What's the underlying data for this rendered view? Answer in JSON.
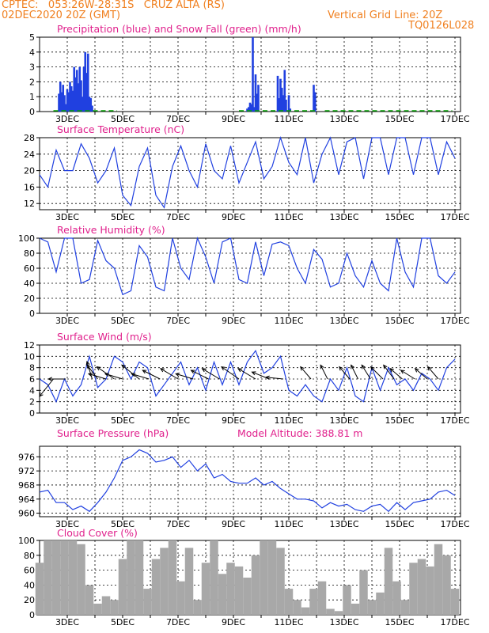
{
  "header": {
    "line1": "CPTEC:   053:26W-28:31S   CRUZ ALTA (RS)",
    "line2": "02DEC2020 20Z (GMT)",
    "grid_note": "Vertical Grid Line: 20Z",
    "code": "TQ0126L028"
  },
  "colors": {
    "header": "#f08020",
    "titles": "#e0208c",
    "line": "#2040e0",
    "precip": "#2040e0",
    "snow": "#00a000",
    "cloud": "#a8a8a8",
    "arrow": "#000000"
  },
  "x_ticks": [
    "3DEC",
    "5DEC",
    "7DEC",
    "9DEC",
    "11DEC",
    "13DEC",
    "15DEC",
    "17DEC"
  ],
  "chart_data": [
    {
      "type": "bar",
      "title": "Precipitation (blue) and Snow Fall (green) (mm/h)",
      "ylim": [
        0,
        5
      ],
      "yticks": [
        0,
        1,
        2,
        3,
        4,
        5
      ],
      "series": [
        {
          "name": "Precipitation",
          "x": [
            2.7,
            2.75,
            2.8,
            2.85,
            2.9,
            2.95,
            3.0,
            3.05,
            3.1,
            3.15,
            3.2,
            3.25,
            3.3,
            3.35,
            3.4,
            3.45,
            3.5,
            3.55,
            3.6,
            3.65,
            3.7,
            3.75,
            3.8,
            3.85,
            3.9,
            9.5,
            9.55,
            9.6,
            9.65,
            9.7,
            9.75,
            9.8,
            9.85,
            9.9,
            10.6,
            10.65,
            10.7,
            10.75,
            10.8,
            10.85,
            10.9,
            11.0,
            11.05,
            11.9,
            11.95
          ],
          "values": [
            1.2,
            2.0,
            1.3,
            1.8,
            1.1,
            0.5,
            1.5,
            1.3,
            2.0,
            1.7,
            1.4,
            3.0,
            2.3,
            2.8,
            1.9,
            3.0,
            2.1,
            1.0,
            3.0,
            4.0,
            2.6,
            3.9,
            1.0,
            0.9,
            0.4,
            0.2,
            0.3,
            0.6,
            0.5,
            5.0,
            0.3,
            2.5,
            1.2,
            1.8,
            2.4,
            0.9,
            2.2,
            1.6,
            1.1,
            2.8,
            0.8,
            1.1,
            0.2,
            1.8,
            1.3
          ]
        },
        {
          "name": "Snow Fall",
          "values": [
            0
          ]
        }
      ]
    },
    {
      "type": "line",
      "title": "Surface Temperature (nC)",
      "ylim": [
        10.5,
        28
      ],
      "yticks": [
        12,
        16,
        20,
        24,
        28
      ],
      "series": [
        {
          "name": "Temperature",
          "x": [
            2,
            2.3,
            2.6,
            2.9,
            3.2,
            3.5,
            3.8,
            4.1,
            4.4,
            4.7,
            5.0,
            5.3,
            5.6,
            5.9,
            6.2,
            6.5,
            6.8,
            7.1,
            7.4,
            7.7,
            8.0,
            8.3,
            8.6,
            8.9,
            9.2,
            9.5,
            9.8,
            10.1,
            10.4,
            10.7,
            11.0,
            11.3,
            11.6,
            11.9,
            12.2,
            12.5,
            12.8,
            13.1,
            13.4,
            13.7,
            14.0,
            14.3,
            14.6,
            14.9,
            15.2,
            15.5,
            15.8,
            16.1,
            16.4,
            16.7,
            17.0
          ],
          "values": [
            19,
            16,
            25,
            20,
            20,
            26.5,
            23,
            17,
            20,
            25.5,
            14,
            11.5,
            21,
            25.5,
            14,
            11,
            21,
            26,
            20,
            16,
            26.5,
            20,
            18,
            26,
            17,
            22,
            27,
            18,
            21,
            28,
            22,
            19,
            28,
            17,
            24,
            28,
            19,
            27,
            28,
            18,
            28,
            28,
            19,
            28,
            28,
            19,
            28,
            28,
            19,
            27,
            23
          ]
        }
      ]
    },
    {
      "type": "line",
      "title": "Relative Humidity (%)",
      "ylim": [
        0,
        100
      ],
      "yticks": [
        0,
        20,
        40,
        60,
        80,
        100
      ],
      "series": [
        {
          "name": "Relative Humidity",
          "x": [
            2,
            2.3,
            2.6,
            2.9,
            3.2,
            3.5,
            3.8,
            4.1,
            4.4,
            4.7,
            5.0,
            5.3,
            5.6,
            5.9,
            6.2,
            6.5,
            6.8,
            7.1,
            7.4,
            7.7,
            8.0,
            8.3,
            8.6,
            8.9,
            9.2,
            9.5,
            9.8,
            10.1,
            10.4,
            10.7,
            11.0,
            11.3,
            11.6,
            11.9,
            12.2,
            12.5,
            12.8,
            13.1,
            13.4,
            13.7,
            14.0,
            14.3,
            14.6,
            14.9,
            15.2,
            15.5,
            15.8,
            16.1,
            16.4,
            16.7,
            17.0
          ],
          "values": [
            100,
            95,
            55,
            100,
            100,
            40,
            45,
            97,
            70,
            60,
            25,
            30,
            90,
            75,
            35,
            30,
            100,
            60,
            45,
            100,
            75,
            40,
            95,
            100,
            45,
            40,
            95,
            50,
            92,
            95,
            90,
            60,
            40,
            85,
            72,
            35,
            40,
            80,
            50,
            35,
            70,
            40,
            30,
            100,
            55,
            35,
            100,
            100,
            50,
            40,
            55
          ]
        }
      ]
    },
    {
      "type": "line",
      "title": "Surface Wind (m/s)",
      "ylim": [
        0,
        12
      ],
      "yticks": [
        0,
        2,
        4,
        6,
        8,
        10,
        12
      ],
      "series": [
        {
          "name": "Wind Speed",
          "x": [
            2,
            2.3,
            2.6,
            2.9,
            3.2,
            3.5,
            3.8,
            4.1,
            4.4,
            4.7,
            5.0,
            5.3,
            5.6,
            5.9,
            6.2,
            6.5,
            6.8,
            7.1,
            7.4,
            7.7,
            8.0,
            8.3,
            8.6,
            8.9,
            9.2,
            9.5,
            9.8,
            10.1,
            10.4,
            10.7,
            11.0,
            11.3,
            11.6,
            11.9,
            12.2,
            12.5,
            12.8,
            13.1,
            13.4,
            13.7,
            14.0,
            14.3,
            14.6,
            14.9,
            15.2,
            15.5,
            15.8,
            16.1,
            16.4,
            16.7,
            17.0
          ],
          "values": [
            6,
            5,
            2,
            6,
            3,
            5,
            10,
            4.5,
            6,
            10,
            9,
            6,
            9,
            8,
            3,
            5,
            7,
            9,
            5,
            8,
            4,
            9,
            5,
            9,
            5,
            9,
            11,
            7,
            8,
            10,
            4,
            3,
            5,
            3,
            2,
            6,
            4,
            8,
            3,
            2,
            8,
            4,
            8,
            5,
            6,
            4,
            7,
            6,
            4,
            8,
            9.5
          ]
        }
      ]
    },
    {
      "type": "line",
      "title": "Surface Pressure (hPa)",
      "annotation": "Model Altitude: 388.81 m",
      "ylim": [
        959,
        979
      ],
      "yticks": [
        960,
        964,
        968,
        972,
        976
      ],
      "series": [
        {
          "name": "Pressure",
          "x": [
            2,
            2.3,
            2.6,
            2.9,
            3.2,
            3.5,
            3.8,
            4.1,
            4.4,
            4.7,
            5.0,
            5.3,
            5.6,
            5.9,
            6.2,
            6.5,
            6.8,
            7.1,
            7.4,
            7.7,
            8.0,
            8.3,
            8.6,
            8.9,
            9.2,
            9.5,
            9.8,
            10.1,
            10.4,
            10.7,
            11.0,
            11.3,
            11.6,
            11.9,
            12.2,
            12.5,
            12.8,
            13.1,
            13.4,
            13.7,
            14.0,
            14.3,
            14.6,
            14.9,
            15.2,
            15.5,
            15.8,
            16.1,
            16.4,
            16.7,
            17.0
          ],
          "values": [
            966,
            966.5,
            963,
            963,
            961,
            962,
            960.5,
            963,
            966,
            970,
            975,
            976,
            978,
            977,
            974.5,
            975,
            976,
            973,
            975,
            972,
            974,
            970,
            971,
            969,
            968.5,
            968.5,
            970,
            968,
            969,
            967,
            965.5,
            964,
            964,
            963.5,
            961.5,
            963,
            962,
            962.5,
            961,
            960.5,
            962,
            962.5,
            960.5,
            963,
            961,
            963,
            963.5,
            964,
            966,
            966.5,
            965
          ]
        }
      ]
    },
    {
      "type": "bar",
      "title": "Cloud Cover (%)",
      "ylim": [
        0,
        100
      ],
      "yticks": [
        0,
        20,
        40,
        60,
        80,
        100
      ],
      "series": [
        {
          "name": "Cloud Cover",
          "x": [
            2,
            2.3,
            2.6,
            2.9,
            3.2,
            3.5,
            3.8,
            4.1,
            4.4,
            4.7,
            5.0,
            5.3,
            5.6,
            5.9,
            6.2,
            6.5,
            6.8,
            7.1,
            7.4,
            7.7,
            8.0,
            8.3,
            8.6,
            8.9,
            9.2,
            9.5,
            9.8,
            10.1,
            10.4,
            10.7,
            11.0,
            11.3,
            11.6,
            11.9,
            12.2,
            12.5,
            12.8,
            13.1,
            13.4,
            13.7,
            14.0,
            14.3,
            14.6,
            14.9,
            15.2,
            15.5,
            15.8,
            16.1,
            16.4,
            16.7,
            17.0
          ],
          "values": [
            70,
            100,
            100,
            100,
            100,
            95,
            40,
            15,
            25,
            20,
            75,
            100,
            100,
            35,
            75,
            90,
            100,
            45,
            90,
            20,
            70,
            100,
            55,
            70,
            65,
            50,
            80,
            100,
            100,
            90,
            35,
            20,
            10,
            35,
            45,
            8,
            5,
            40,
            15,
            60,
            20,
            30,
            90,
            45,
            20,
            70,
            75,
            65,
            95,
            80,
            35
          ]
        }
      ]
    }
  ],
  "wind_arrows": [
    {
      "day": 2.5,
      "u": -0.8,
      "v": -1.0
    },
    {
      "day": 2.95,
      "u": -1.0,
      "v": 0.0
    },
    {
      "day": 3.9,
      "u": -0.3,
      "v": 1.0
    },
    {
      "day": 4.1,
      "u": -0.6,
      "v": 0.8
    },
    {
      "day": 4.4,
      "u": -1.0,
      "v": 0.3
    },
    {
      "day": 4.7,
      "u": -1.0,
      "v": 0.7
    },
    {
      "day": 5.0,
      "u": -1.0,
      "v": 0.3
    },
    {
      "day": 5.6,
      "u": -1.0,
      "v": 0.8
    },
    {
      "day": 5.95,
      "u": -1.0,
      "v": 0.3
    },
    {
      "day": 6.35,
      "u": -1.0,
      "v": 0.5
    },
    {
      "day": 7.0,
      "u": -1.0,
      "v": 0.6
    },
    {
      "day": 7.55,
      "u": -1.0,
      "v": 0.3
    },
    {
      "day": 8.1,
      "u": -1.0,
      "v": 0.5
    },
    {
      "day": 8.5,
      "u": -1.0,
      "v": 0.6
    },
    {
      "day": 9.2,
      "u": -1.0,
      "v": 0.7
    },
    {
      "day": 9.8,
      "u": -1.0,
      "v": 0.6
    },
    {
      "day": 10.3,
      "u": -1.0,
      "v": 0.4
    },
    {
      "day": 10.8,
      "u": -1.0,
      "v": 0.1
    },
    {
      "day": 11.8,
      "u": -0.6,
      "v": 0.7
    },
    {
      "day": 12.4,
      "u": -0.4,
      "v": 0.8
    },
    {
      "day": 13.2,
      "u": -0.6,
      "v": 0.7
    },
    {
      "day": 13.5,
      "u": -0.4,
      "v": 0.8
    },
    {
      "day": 13.95,
      "u": -0.5,
      "v": 0.8
    },
    {
      "day": 14.4,
      "u": -0.7,
      "v": 0.7
    },
    {
      "day": 14.8,
      "u": -0.6,
      "v": 0.8
    },
    {
      "day": 15.1,
      "u": -0.7,
      "v": 0.6
    },
    {
      "day": 15.55,
      "u": -0.8,
      "v": 0.5
    },
    {
      "day": 16.0,
      "u": -0.7,
      "v": 0.6
    },
    {
      "day": 16.4,
      "u": -0.6,
      "v": 0.7
    }
  ]
}
